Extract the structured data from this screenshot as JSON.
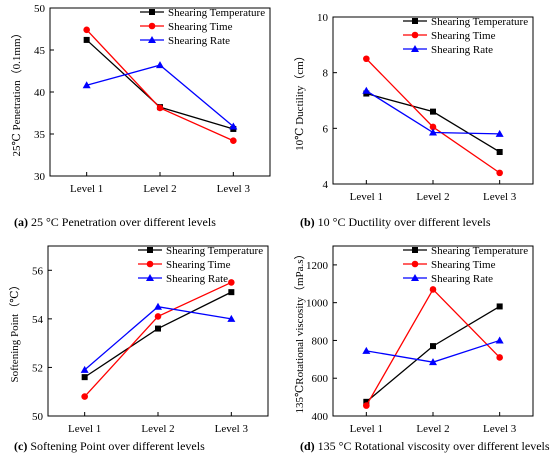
{
  "colors": {
    "Shearing Temperature": "#000000",
    "Shearing Time": "#ff0000",
    "Shearing Rate": "#0000ff"
  },
  "chart_data": [
    {
      "type": "line",
      "panel": "(a)",
      "caption_prefix": "(a)",
      "caption": "25 °C Penetration over different levels",
      "ylabel": "25℃ Penetration（0.1mm）",
      "categories": [
        "Level 1",
        "Level 2",
        "Level 3"
      ],
      "ylim": [
        30,
        50
      ],
      "yticks": [
        30,
        35,
        40,
        45,
        50
      ],
      "legend": "top-right",
      "series": [
        {
          "name": "Shearing Temperature",
          "values": [
            46.2,
            38.2,
            35.6
          ],
          "marker": "square"
        },
        {
          "name": "Shearing Time",
          "values": [
            47.4,
            38.1,
            34.2
          ],
          "marker": "circle"
        },
        {
          "name": "Shearing Rate",
          "values": [
            40.8,
            43.2,
            35.9
          ],
          "marker": "triangle"
        }
      ]
    },
    {
      "type": "line",
      "panel": "(b)",
      "caption_prefix": "(b)",
      "caption": "10 °C Ductility over different levels",
      "ylabel": "10℃ Ductility（cm）",
      "categories": [
        "Level 1",
        "Level 2",
        "Level 3"
      ],
      "ylim": [
        4,
        10
      ],
      "yticks": [
        4,
        6,
        8,
        10
      ],
      "legend": "top-right",
      "series": [
        {
          "name": "Shearing Temperature",
          "values": [
            7.25,
            6.6,
            5.15
          ],
          "marker": "square"
        },
        {
          "name": "Shearing Time",
          "values": [
            8.5,
            6.05,
            4.4
          ],
          "marker": "circle"
        },
        {
          "name": "Shearing Rate",
          "values": [
            7.35,
            5.85,
            5.8
          ],
          "marker": "triangle"
        }
      ]
    },
    {
      "type": "line",
      "panel": "(c)",
      "caption_prefix": "(c)",
      "caption": "Softening Point over different levels",
      "ylabel": "Softening Point（℃）",
      "categories": [
        "Level 1",
        "Level 2",
        "Level 3"
      ],
      "ylim": [
        50,
        57
      ],
      "yticks": [
        50,
        52,
        54,
        56
      ],
      "legend": "top-right",
      "series": [
        {
          "name": "Shearing Temperature",
          "values": [
            51.6,
            53.6,
            55.1
          ],
          "marker": "square"
        },
        {
          "name": "Shearing Time",
          "values": [
            50.8,
            54.1,
            55.5
          ],
          "marker": "circle"
        },
        {
          "name": "Shearing Rate",
          "values": [
            51.9,
            54.5,
            54.0
          ],
          "marker": "triangle"
        }
      ]
    },
    {
      "type": "line",
      "panel": "(d)",
      "caption_prefix": "(d)",
      "caption": "135 °C Rotational viscosity over different levels",
      "ylabel": "135℃Rotational viscosity（mPa.s）",
      "categories": [
        "Level 1",
        "Level 2",
        "Level 3"
      ],
      "ylim": [
        400,
        1300
      ],
      "yticks": [
        400,
        600,
        800,
        1000,
        1200
      ],
      "legend": "top-right",
      "series": [
        {
          "name": "Shearing Temperature",
          "values": [
            475,
            770,
            980
          ],
          "marker": "square"
        },
        {
          "name": "Shearing Time",
          "values": [
            455,
            1070,
            710
          ],
          "marker": "circle"
        },
        {
          "name": "Shearing Rate",
          "values": [
            745,
            685,
            800
          ],
          "marker": "triangle"
        }
      ]
    }
  ]
}
